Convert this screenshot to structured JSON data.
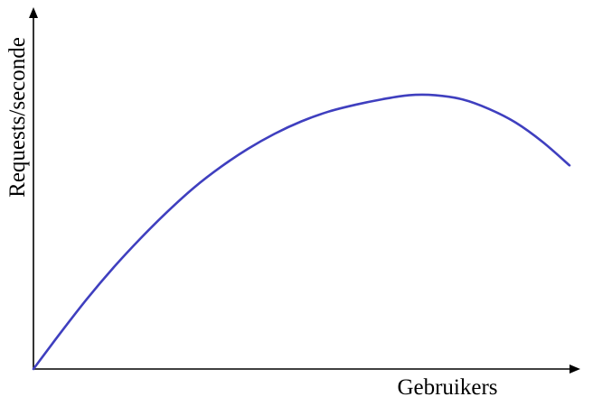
{
  "chart_data": {
    "type": "line",
    "title": "",
    "xlabel": "Gebruikers",
    "ylabel": "Requests/seconde",
    "xlim": [
      0,
      1
    ],
    "ylim": [
      0,
      1
    ],
    "grid": false,
    "legend": "none",
    "axis_ticks": "none",
    "series": [
      {
        "color": "#3f3fbf",
        "x": [
          0.0,
          0.05,
          0.1,
          0.15,
          0.2,
          0.25,
          0.3,
          0.35,
          0.4,
          0.45,
          0.5,
          0.55,
          0.6,
          0.65,
          0.7,
          0.75,
          0.8,
          0.85,
          0.9,
          0.95,
          1.0
        ],
        "y": [
          0.0,
          0.13,
          0.255,
          0.37,
          0.475,
          0.572,
          0.66,
          0.735,
          0.8,
          0.855,
          0.9,
          0.935,
          0.96,
          0.98,
          0.995,
          0.995,
          0.98,
          0.945,
          0.895,
          0.825,
          0.74
        ]
      }
    ]
  }
}
